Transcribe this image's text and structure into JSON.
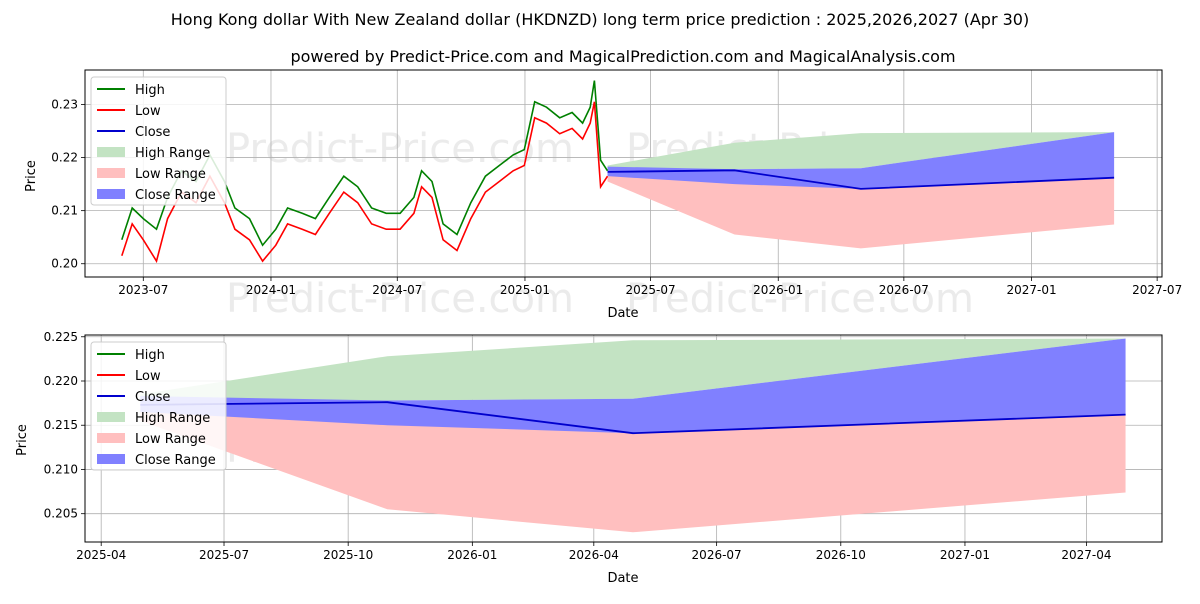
{
  "title": "Hong Kong dollar With New Zealand dollar (HKDNZD) long term price prediction : 2025,2026,2027 (Apr 30)",
  "subtitle": "powered by Predict-Price.com and MagicalPrediction.com and MagicalAnalysis.com",
  "watermark": "Predict-Price.com",
  "colors": {
    "high": "#008000",
    "low": "#ff0000",
    "close": "#0000cd",
    "high_range": "#c3e3c3",
    "low_range": "#ffbfbf",
    "close_range": "#8080ff",
    "grid": "#b0b0b0"
  },
  "chart_data": [
    {
      "type": "line",
      "xlabel": "Date",
      "ylabel": "Price",
      "xlim": [
        "2023-04-08",
        "2027-07-08"
      ],
      "ylim": [
        0.1975,
        0.2365
      ],
      "xticks": [
        "2023-07",
        "2024-01",
        "2024-07",
        "2025-01",
        "2025-07",
        "2026-01",
        "2026-07",
        "2027-01",
        "2027-07"
      ],
      "yticks": [
        0.2,
        0.21,
        0.22,
        0.23
      ],
      "ytick_labels": [
        "0.20",
        "0.21",
        "0.22",
        "0.23"
      ],
      "grid": true,
      "legend_position": "top-left",
      "legend": [
        "High",
        "Low",
        "Close",
        "High Range",
        "Low Range",
        "Close Range"
      ],
      "history": {
        "dates": [
          "2023-05-31",
          "2023-06-15",
          "2023-07-01",
          "2023-07-20",
          "2023-08-05",
          "2023-08-25",
          "2023-09-15",
          "2023-10-05",
          "2023-10-26",
          "2023-11-10",
          "2023-12-01",
          "2023-12-20",
          "2024-01-08",
          "2024-01-25",
          "2024-02-15",
          "2024-03-05",
          "2024-03-25",
          "2024-04-15",
          "2024-05-05",
          "2024-05-25",
          "2024-06-15",
          "2024-07-05",
          "2024-07-25",
          "2024-08-05",
          "2024-08-20",
          "2024-09-05",
          "2024-09-25",
          "2024-10-15",
          "2024-11-05",
          "2024-11-25",
          "2024-12-15",
          "2024-12-31",
          "2025-01-15",
          "2025-02-01",
          "2025-02-20",
          "2025-03-10",
          "2025-03-25",
          "2025-04-05",
          "2025-04-11",
          "2025-04-20",
          "2025-04-30"
        ],
        "high": [
          0.2045,
          0.2105,
          0.2085,
          0.2065,
          0.2125,
          0.2175,
          0.2155,
          0.2205,
          0.2155,
          0.2105,
          0.2085,
          0.2035,
          0.2065,
          0.2105,
          0.2095,
          0.2085,
          0.2125,
          0.2165,
          0.2145,
          0.2105,
          0.2095,
          0.2095,
          0.2125,
          0.2175,
          0.2155,
          0.2075,
          0.2055,
          0.2115,
          0.2165,
          0.2185,
          0.2205,
          0.2215,
          0.2305,
          0.2295,
          0.2275,
          0.2285,
          0.2265,
          0.2295,
          0.2345,
          0.2195,
          0.2175
        ],
        "low": [
          0.2015,
          0.2075,
          0.2045,
          0.2005,
          0.2085,
          0.2135,
          0.2115,
          0.2165,
          0.2115,
          0.2065,
          0.2045,
          0.2005,
          0.2035,
          0.2075,
          0.2065,
          0.2055,
          0.2095,
          0.2135,
          0.2115,
          0.2075,
          0.2065,
          0.2065,
          0.2095,
          0.2145,
          0.2125,
          0.2045,
          0.2025,
          0.2085,
          0.2135,
          0.2155,
          0.2175,
          0.2185,
          0.2275,
          0.2265,
          0.2245,
          0.2255,
          0.2235,
          0.2265,
          0.2305,
          0.2145,
          0.2165
        ]
      },
      "forecast": {
        "dates": [
          "2025-04-30",
          "2025-10-30",
          "2026-04-30",
          "2027-04-30"
        ],
        "close": [
          0.2173,
          0.2176,
          0.2141,
          0.2162
        ],
        "high_range": [
          [
            0.2179,
            0.2185
          ],
          [
            0.2178,
            0.2228
          ],
          [
            0.218,
            0.2246
          ],
          [
            0.2248,
            0.2248
          ]
        ],
        "low_range": [
          [
            0.2155,
            0.2171
          ],
          [
            0.2055,
            0.2152
          ],
          [
            0.2029,
            0.2145
          ],
          [
            0.2074,
            0.2162
          ]
        ],
        "close_range": [
          [
            0.2165,
            0.2183
          ],
          [
            0.215,
            0.2178
          ],
          [
            0.2141,
            0.218
          ],
          [
            0.2162,
            0.2248
          ]
        ]
      }
    },
    {
      "type": "line",
      "xlabel": "Date",
      "ylabel": "Price",
      "xlim": [
        "2025-03-20",
        "2027-05-27"
      ],
      "ylim": [
        0.2018,
        0.2252
      ],
      "xticks": [
        "2025-04",
        "2025-07",
        "2025-10",
        "2026-01",
        "2026-04",
        "2026-07",
        "2026-10",
        "2027-01",
        "2027-04"
      ],
      "yticks": [
        0.205,
        0.21,
        0.215,
        0.22,
        0.225
      ],
      "ytick_labels": [
        "0.205",
        "0.210",
        "0.215",
        "0.220",
        "0.225"
      ],
      "grid": true,
      "legend_position": "top-left",
      "legend": [
        "High",
        "Low",
        "Close",
        "High Range",
        "Low Range",
        "Close Range"
      ],
      "forecast": {
        "dates": [
          "2025-04-30",
          "2025-10-30",
          "2026-04-30",
          "2027-04-30"
        ],
        "close": [
          0.2173,
          0.2176,
          0.2141,
          0.2162
        ],
        "high_range": [
          [
            0.2179,
            0.2185
          ],
          [
            0.2178,
            0.2228
          ],
          [
            0.218,
            0.2246
          ],
          [
            0.2248,
            0.2248
          ]
        ],
        "low_range": [
          [
            0.2155,
            0.2171
          ],
          [
            0.2055,
            0.2152
          ],
          [
            0.2029,
            0.2145
          ],
          [
            0.2074,
            0.2162
          ]
        ],
        "close_range": [
          [
            0.2165,
            0.2183
          ],
          [
            0.215,
            0.2178
          ],
          [
            0.2141,
            0.218
          ],
          [
            0.2162,
            0.2248
          ]
        ]
      }
    }
  ]
}
